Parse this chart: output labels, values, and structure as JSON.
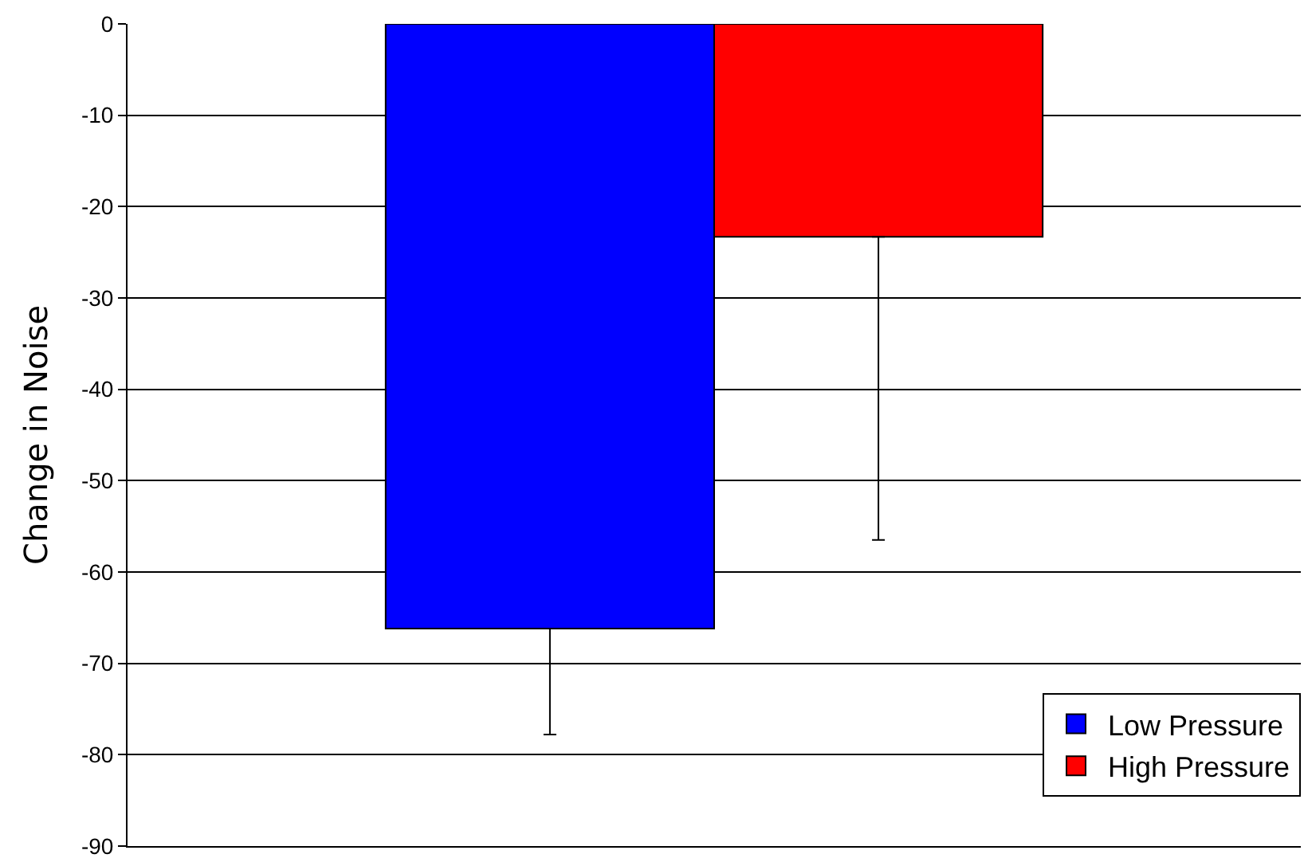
{
  "chart_data": {
    "type": "bar",
    "ylabel": "Change in Noise",
    "categories": [
      null
    ],
    "series": [
      {
        "name": "Low Pressure",
        "color": "#0000ff",
        "values": [
          -66.2
        ],
        "errors": [
          [
            -77.8,
            -66.2
          ]
        ]
      },
      {
        "name": "High Pressure",
        "color": "#ff0000",
        "values": [
          -23.3
        ],
        "errors": [
          [
            -56.5,
            -23.3
          ]
        ]
      }
    ],
    "ylim": [
      -90,
      0
    ],
    "yticks": [
      0,
      -10,
      -20,
      -30,
      -40,
      -50,
      -60,
      -70,
      -80,
      -90
    ],
    "grid": "y",
    "legend": "bottom right"
  }
}
